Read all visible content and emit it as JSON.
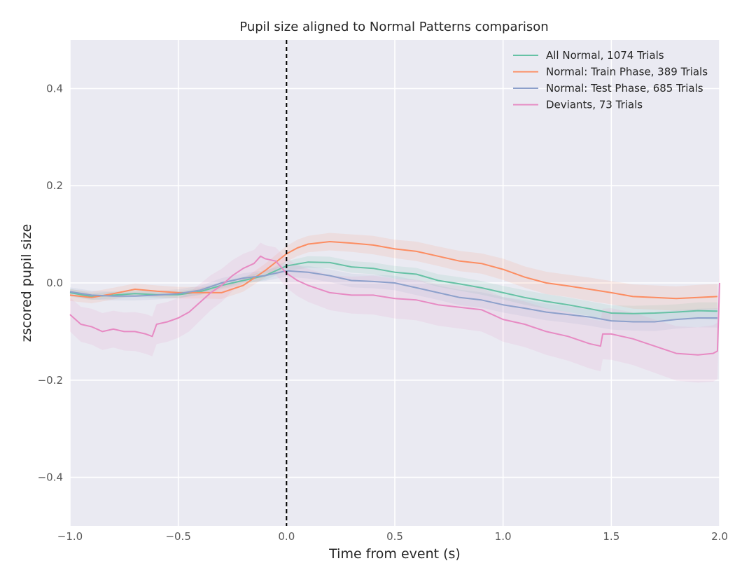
{
  "chart_data": {
    "type": "line",
    "title": "Pupil size aligned to Normal Patterns comparison",
    "xlabel": "Time from event (s)",
    "ylabel": "zscored pupil size",
    "xlim": [
      -1.0,
      2.0
    ],
    "ylim": [
      -0.5,
      0.5
    ],
    "xticks": [
      -1.0,
      -0.5,
      0.0,
      0.5,
      1.0,
      1.5,
      2.0
    ],
    "xtick_labels": [
      "−1.0",
      "−0.5",
      "0.0",
      "0.5",
      "1.0",
      "1.5",
      "2.0"
    ],
    "yticks": [
      -0.4,
      -0.2,
      0.0,
      0.2,
      0.4
    ],
    "ytick_labels": [
      "−0.4",
      "−0.2",
      "0.0",
      "0.2",
      "0.4"
    ],
    "grid": true,
    "legend_position": "top-right",
    "event_line": {
      "x": 0.0,
      "style": "dashed",
      "color": "#000000"
    },
    "series": [
      {
        "name": "All Normal, 1074 Trials",
        "color": "#66c2a5",
        "x": [
          -1.0,
          -0.9,
          -0.8,
          -0.7,
          -0.6,
          -0.5,
          -0.4,
          -0.3,
          -0.2,
          -0.1,
          0.0,
          0.1,
          0.2,
          0.3,
          0.4,
          0.5,
          0.6,
          0.7,
          0.8,
          0.9,
          1.0,
          1.1,
          1.2,
          1.3,
          1.4,
          1.5,
          1.6,
          1.7,
          1.8,
          1.9,
          1.99
        ],
        "y": [
          -0.02,
          -0.028,
          -0.025,
          -0.022,
          -0.024,
          -0.024,
          -0.018,
          -0.005,
          0.005,
          0.015,
          0.035,
          0.043,
          0.042,
          0.033,
          0.03,
          0.022,
          0.018,
          0.005,
          -0.002,
          -0.01,
          -0.02,
          -0.03,
          -0.038,
          -0.045,
          -0.053,
          -0.062,
          -0.063,
          -0.062,
          -0.06,
          -0.057,
          -0.058
        ],
        "ci": [
          0.008,
          0.007,
          0.007,
          0.007,
          0.007,
          0.007,
          0.007,
          0.008,
          0.008,
          0.009,
          0.01,
          0.012,
          0.012,
          0.012,
          0.012,
          0.013,
          0.013,
          0.013,
          0.014,
          0.014,
          0.014,
          0.015,
          0.015,
          0.015,
          0.015,
          0.016,
          0.016,
          0.016,
          0.016,
          0.017,
          0.018
        ]
      },
      {
        "name": "Normal: Train Phase, 389 Trials",
        "color": "#fc8d62",
        "x": [
          -1.0,
          -0.9,
          -0.8,
          -0.7,
          -0.6,
          -0.5,
          -0.4,
          -0.3,
          -0.2,
          -0.1,
          0.0,
          0.05,
          0.1,
          0.2,
          0.3,
          0.4,
          0.5,
          0.6,
          0.7,
          0.8,
          0.9,
          1.0,
          1.1,
          1.2,
          1.3,
          1.4,
          1.5,
          1.6,
          1.7,
          1.8,
          1.9,
          1.99
        ],
        "y": [
          -0.025,
          -0.03,
          -0.022,
          -0.013,
          -0.017,
          -0.02,
          -0.02,
          -0.02,
          -0.005,
          0.025,
          0.06,
          0.072,
          0.08,
          0.085,
          0.082,
          0.078,
          0.07,
          0.065,
          0.055,
          0.045,
          0.04,
          0.028,
          0.012,
          0.0,
          -0.006,
          -0.013,
          -0.02,
          -0.028,
          -0.03,
          -0.032,
          -0.03,
          -0.028
        ],
        "ci": [
          0.012,
          0.012,
          0.012,
          0.012,
          0.012,
          0.012,
          0.012,
          0.013,
          0.013,
          0.014,
          0.016,
          0.017,
          0.017,
          0.018,
          0.018,
          0.019,
          0.019,
          0.02,
          0.02,
          0.021,
          0.021,
          0.022,
          0.022,
          0.023,
          0.023,
          0.024,
          0.024,
          0.025,
          0.025,
          0.025,
          0.026,
          0.026
        ]
      },
      {
        "name": "Normal: Test Phase, 685 Trials",
        "color": "#8da0cb",
        "x": [
          -1.0,
          -0.9,
          -0.8,
          -0.7,
          -0.6,
          -0.5,
          -0.4,
          -0.3,
          -0.2,
          -0.1,
          0.0,
          0.1,
          0.2,
          0.3,
          0.4,
          0.5,
          0.6,
          0.7,
          0.8,
          0.9,
          1.0,
          1.1,
          1.2,
          1.3,
          1.4,
          1.5,
          1.6,
          1.7,
          1.8,
          1.9,
          1.99
        ],
        "y": [
          -0.018,
          -0.025,
          -0.027,
          -0.027,
          -0.025,
          -0.022,
          -0.015,
          0.0,
          0.01,
          0.015,
          0.025,
          0.022,
          0.015,
          0.005,
          0.003,
          0.0,
          -0.01,
          -0.02,
          -0.03,
          -0.035,
          -0.045,
          -0.052,
          -0.06,
          -0.065,
          -0.07,
          -0.078,
          -0.08,
          -0.08,
          -0.075,
          -0.072,
          -0.072
        ],
        "ci": [
          0.009,
          0.009,
          0.009,
          0.009,
          0.009,
          0.009,
          0.009,
          0.01,
          0.01,
          0.011,
          0.012,
          0.013,
          0.013,
          0.014,
          0.014,
          0.015,
          0.015,
          0.015,
          0.016,
          0.016,
          0.016,
          0.017,
          0.017,
          0.017,
          0.018,
          0.018,
          0.018,
          0.019,
          0.019,
          0.019,
          0.02
        ]
      },
      {
        "name": "Deviants, 73 Trials",
        "color": "#e78ac3",
        "x": [
          -1.0,
          -0.95,
          -0.9,
          -0.85,
          -0.8,
          -0.75,
          -0.7,
          -0.65,
          -0.62,
          -0.6,
          -0.55,
          -0.5,
          -0.45,
          -0.4,
          -0.35,
          -0.3,
          -0.25,
          -0.2,
          -0.15,
          -0.12,
          -0.1,
          -0.05,
          0.0,
          0.05,
          0.1,
          0.2,
          0.3,
          0.4,
          0.5,
          0.6,
          0.7,
          0.8,
          0.9,
          0.95,
          1.0,
          1.1,
          1.2,
          1.3,
          1.4,
          1.45,
          1.46,
          1.5,
          1.6,
          1.7,
          1.8,
          1.9,
          1.97,
          1.99,
          2.0
        ],
        "y": [
          -0.065,
          -0.085,
          -0.09,
          -0.1,
          -0.095,
          -0.1,
          -0.1,
          -0.105,
          -0.11,
          -0.085,
          -0.08,
          -0.072,
          -0.06,
          -0.04,
          -0.02,
          -0.005,
          0.015,
          0.03,
          0.04,
          0.055,
          0.05,
          0.045,
          0.02,
          0.005,
          -0.005,
          -0.02,
          -0.025,
          -0.025,
          -0.032,
          -0.035,
          -0.045,
          -0.05,
          -0.055,
          -0.065,
          -0.075,
          -0.085,
          -0.1,
          -0.11,
          -0.125,
          -0.13,
          -0.105,
          -0.105,
          -0.115,
          -0.13,
          -0.145,
          -0.148,
          -0.145,
          -0.14,
          0.0
        ],
        "ci": [
          0.035,
          0.036,
          0.037,
          0.038,
          0.038,
          0.039,
          0.04,
          0.041,
          0.041,
          0.041,
          0.041,
          0.041,
          0.04,
          0.038,
          0.036,
          0.034,
          0.032,
          0.03,
          0.028,
          0.028,
          0.028,
          0.028,
          0.03,
          0.032,
          0.034,
          0.036,
          0.038,
          0.04,
          0.041,
          0.042,
          0.043,
          0.044,
          0.045,
          0.045,
          0.046,
          0.047,
          0.048,
          0.05,
          0.051,
          0.052,
          0.052,
          0.053,
          0.054,
          0.055,
          0.056,
          0.057,
          0.058,
          0.058,
          0.058
        ]
      }
    ]
  }
}
